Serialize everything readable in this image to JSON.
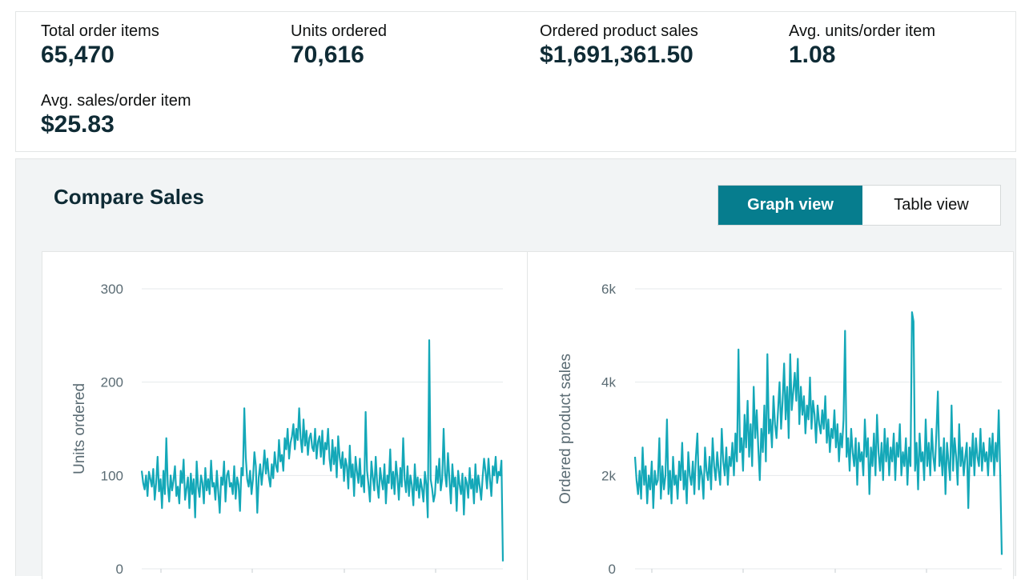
{
  "metrics": [
    {
      "label": "Total order items",
      "value": "65,470"
    },
    {
      "label": "Units ordered",
      "value": "70,616"
    },
    {
      "label": "Ordered product sales",
      "value": "$1,691,361.50"
    },
    {
      "label": "Avg. units/order item",
      "value": "1.08"
    },
    {
      "label": "Avg. sales/order item",
      "value": "$25.83"
    }
  ],
  "compare": {
    "title": "Compare Sales",
    "toggle": {
      "graph_label": "Graph view",
      "table_label": "Table view",
      "selected": "graph"
    }
  },
  "colors": {
    "line": "#14a8b8",
    "accent": "#067d8e",
    "grid": "#e6e9eb"
  },
  "chart_data": [
    {
      "type": "line",
      "ylabel": "Units ordered",
      "yticks": [
        "300",
        "200",
        "100",
        "0"
      ],
      "ylim": [
        0,
        300
      ],
      "grid": true,
      "series": [
        {
          "values": [
            105,
            92,
            85,
            100,
            78,
            104,
            96,
            88,
            107,
            74,
            92,
            120,
            83,
            96,
            65,
            105,
            80,
            140,
            90,
            72,
            100,
            84,
            95,
            110,
            78,
            88,
            70,
            105,
            92,
            117,
            74,
            86,
            98,
            65,
            102,
            80,
            96,
            55,
            115,
            88,
            77,
            100,
            92,
            70,
            108,
            84,
            96,
            80,
            116,
            88,
            92,
            74,
            105,
            82,
            60,
            98,
            90,
            115,
            72,
            100,
            105,
            88,
            92,
            80,
            110,
            75,
            98,
            90,
            62,
            108,
            100,
            172,
            120,
            96,
            88,
            105,
            80,
            96,
            125,
            110,
            60,
            98,
            112,
            90,
            106,
            127,
            102,
            118,
            98,
            88,
            112,
            97,
            125,
            110,
            104,
            138,
            115,
            122,
            105,
            140,
            128,
            150,
            118,
            135,
            142,
            155,
            128,
            150,
            138,
            172,
            140,
            125,
            160,
            132,
            148,
            122,
            140,
            145,
            130,
            126,
            150,
            118,
            136,
            142,
            120,
            148,
            112,
            135,
            128,
            150,
            118,
            105,
            138,
            112,
            130,
            98,
            142,
            120,
            108,
            125,
            94,
            118,
            110,
            86,
            132,
            98,
            112,
            78,
            120,
            104,
            92,
            118,
            88,
            100,
            82,
            168,
            105,
            90,
            72,
            115,
            98,
            84,
            120,
            90,
            76,
            108,
            95,
            85,
            112,
            70,
            100,
            92,
            128,
            86,
            104,
            80,
            115,
            98,
            74,
            108,
            88,
            140,
            96,
            82,
            110,
            78,
            100,
            90,
            68,
            112,
            84,
            98,
            76,
            96,
            86,
            72,
            104,
            90,
            55,
            245,
            96,
            86,
            72,
            80,
            110,
            92,
            118,
            84,
            96,
            150,
            102,
            88,
            124,
            95,
            70,
            112,
            88,
            98,
            62,
            105,
            90,
            80,
            102,
            58,
            98,
            92,
            76,
            108,
            86,
            96,
            70,
            112,
            82,
            100,
            88,
            74,
            98,
            118,
            104,
            86,
            118,
            96,
            78,
            110,
            100,
            120,
            92,
            104,
            100,
            116,
            8
          ]
        }
      ]
    },
    {
      "type": "line",
      "ylabel": "Ordered product sales",
      "yticks": [
        "6k",
        "4k",
        "2k",
        "0"
      ],
      "ylim": [
        0,
        6000
      ],
      "grid": true,
      "series": [
        {
          "values": [
            2400,
            1900,
            1600,
            2100,
            1500,
            2600,
            1800,
            2200,
            1400,
            2000,
            1700,
            2300,
            1300,
            2100,
            1800,
            1900,
            2800,
            1500,
            2200,
            1700,
            2000,
            3200,
            1600,
            2100,
            1400,
            2400,
            1800,
            2000,
            1500,
            2300,
            1900,
            2700,
            1700,
            2100,
            1400,
            2500,
            2000,
            1800,
            2300,
            1600,
            2400,
            2900,
            1700,
            2200,
            2000,
            1500,
            2600,
            2100,
            1900,
            2400,
            1700,
            2800,
            2200,
            1900,
            2500,
            2100,
            1800,
            3000,
            2300,
            2000,
            2600,
            1800,
            2400,
            2200,
            2700,
            2000,
            2900,
            2300,
            4700,
            2500,
            2800,
            2100,
            3300,
            2600,
            3600,
            2400,
            3100,
            2200,
            3900,
            2800,
            3400,
            2600,
            1900,
            3000,
            2500,
            3500,
            2300,
            4600,
            2900,
            3200,
            2600,
            3700,
            3100,
            2800,
            3400,
            4000,
            3000,
            3600,
            4400,
            3200,
            3900,
            2800,
            4600,
            3400,
            3800,
            4200,
            3600,
            4500,
            3100,
            3900,
            3300,
            3700,
            2900,
            3500,
            3200,
            4100,
            3000,
            3600,
            3300,
            2700,
            3500,
            3100,
            2900,
            3400,
            3000,
            3700,
            2700,
            3200,
            2500,
            3000,
            2800,
            3400,
            2600,
            3100,
            2300,
            2900,
            2600,
            3200,
            5100,
            2400,
            2800,
            2100,
            3000,
            2500,
            2200,
            2800,
            1800,
            2700,
            2300,
            2500,
            2000,
            3200,
            2400,
            2800,
            1600,
            2600,
            2200,
            2900,
            2000,
            3300,
            2500,
            2100,
            2700,
            1900,
            3000,
            2300,
            2800,
            2000,
            2600,
            2300,
            2900,
            1900,
            2700,
            2400,
            3100,
            2000,
            2500,
            2200,
            2800,
            1800,
            2600,
            2200,
            5500,
            5300,
            2100,
            2700,
            1700,
            2900,
            2300,
            2500,
            1900,
            3200,
            2200,
            2700,
            2000,
            3000,
            2400,
            2100,
            2900,
            3800,
            2200,
            2600,
            2000,
            2800,
            1600,
            2700,
            2300,
            1900,
            3500,
            2100,
            2800,
            2400,
            1800,
            3100,
            2200,
            2600,
            2000,
            2400,
            2700,
            1300,
            2600,
            2200,
            2900,
            2000,
            2800,
            2400,
            2200,
            3000,
            2100,
            2700,
            2300,
            2500,
            2000,
            2800,
            2300,
            2900,
            2000,
            2700,
            2300,
            3400,
            2000,
            300
          ]
        }
      ]
    }
  ]
}
